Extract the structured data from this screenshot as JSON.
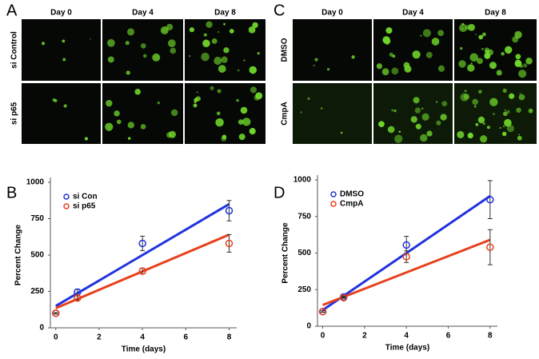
{
  "panel_labels": [
    "A",
    "B",
    "C",
    "D"
  ],
  "image_panels": [
    {
      "columns": [
        "Day 0",
        "Day 4",
        "Day 8"
      ],
      "rows": [
        "si Control",
        "si p65"
      ]
    },
    {
      "columns": [
        "Day 0",
        "Day 4",
        "Day 8"
      ],
      "rows": [
        "DMSO",
        "CmpA"
      ]
    }
  ],
  "chart_data": [
    {
      "type": "scatter",
      "x_label": "Time (days)",
      "y_label": "Percent Change",
      "x": [
        0,
        1,
        4,
        8
      ],
      "xlim": [
        -0.25,
        8.35
      ],
      "xticks": [
        0,
        2,
        4,
        6,
        8
      ],
      "ylim": [
        0,
        1000
      ],
      "yticks": [
        0,
        250,
        500,
        750,
        1000
      ],
      "legend": "upper left",
      "series": [
        {
          "name": "si Con",
          "color": "#2233dd",
          "values": [
            100,
            245,
            580,
            805
          ],
          "errors": [
            5,
            20,
            50,
            70
          ],
          "fit": [
            150,
            850
          ]
        },
        {
          "name": "si p65",
          "color": "#e8401c",
          "values": [
            100,
            205,
            390,
            580
          ],
          "errors": [
            5,
            15,
            20,
            60
          ],
          "fit": [
            135,
            640
          ]
        }
      ]
    },
    {
      "type": "scatter",
      "x_label": "Time (days)",
      "y_label": "Percent Change",
      "x": [
        0,
        1,
        4,
        8
      ],
      "xlim": [
        -0.25,
        8.35
      ],
      "xticks": [
        0,
        2,
        4,
        6,
        8
      ],
      "ylim": [
        0,
        1000
      ],
      "yticks": [
        0,
        250,
        500,
        750,
        1000
      ],
      "legend": "upper left",
      "series": [
        {
          "name": "DMSO",
          "color": "#2233dd",
          "values": [
            100,
            200,
            555,
            865
          ],
          "errors": [
            5,
            5,
            60,
            130
          ],
          "fit": [
            110,
            890
          ]
        },
        {
          "name": "CmpA",
          "color": "#e8401c",
          "values": [
            100,
            195,
            475,
            540
          ],
          "errors": [
            5,
            5,
            40,
            120
          ],
          "fit": [
            145,
            590
          ]
        }
      ]
    }
  ]
}
